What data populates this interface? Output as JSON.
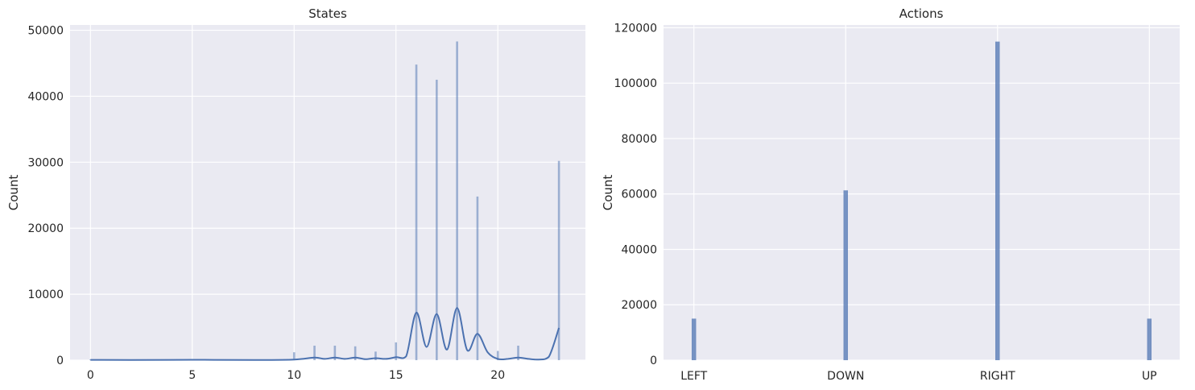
{
  "charts": [
    {
      "title": "States",
      "ylabel": "Count",
      "xlabel": "",
      "xtick_labels": [
        "0",
        "5",
        "10",
        "15",
        "20"
      ],
      "ytick_labels": [
        "0",
        "10000",
        "20000",
        "30000",
        "40000",
        "50000"
      ]
    },
    {
      "title": "Actions",
      "ylabel": "Count",
      "xlabel": "",
      "xtick_labels": [
        "LEFT",
        "DOWN",
        "RIGHT",
        "UP"
      ],
      "ytick_labels": [
        "0",
        "20000",
        "40000",
        "60000",
        "80000",
        "100000",
        "120000"
      ]
    }
  ],
  "colors": {
    "background": "#eaeaf2",
    "grid": "#ffffff",
    "bar": "#4c72b0",
    "kde": "#4c72b0"
  },
  "chart_data": [
    {
      "type": "histogram",
      "title": "States",
      "xlabel": "",
      "ylabel": "Count",
      "xlim": [
        -1,
        24.3
      ],
      "ylim": [
        0,
        50800
      ],
      "xticks": [
        0,
        5,
        10,
        15,
        20
      ],
      "yticks": [
        0,
        10000,
        20000,
        30000,
        40000,
        50000
      ],
      "grid": true,
      "bars": [
        {
          "x": 0,
          "count": 100
        },
        {
          "x": 5,
          "count": 150
        },
        {
          "x": 10,
          "count": 1200
        },
        {
          "x": 11,
          "count": 2200
        },
        {
          "x": 12,
          "count": 2200
        },
        {
          "x": 13,
          "count": 2100
        },
        {
          "x": 14,
          "count": 1300
        },
        {
          "x": 15,
          "count": 2700
        },
        {
          "x": 16,
          "count": 44800
        },
        {
          "x": 17,
          "count": 42500
        },
        {
          "x": 18,
          "count": 48300
        },
        {
          "x": 19,
          "count": 24800
        },
        {
          "x": 20,
          "count": 1400
        },
        {
          "x": 21,
          "count": 2200
        },
        {
          "x": 23,
          "count": 30200
        }
      ],
      "kde": {
        "x": [
          0,
          2,
          5,
          8,
          10,
          11,
          11.5,
          12,
          12.5,
          13,
          13.5,
          14,
          14.5,
          15,
          15.5,
          16,
          16.5,
          17,
          17.5,
          18,
          18.5,
          19,
          19.5,
          20,
          20.5,
          21,
          21.5,
          22,
          22.5,
          23
        ],
        "y": [
          50,
          20,
          60,
          30,
          100,
          400,
          200,
          400,
          200,
          400,
          150,
          300,
          200,
          450,
          600,
          7200,
          2000,
          7000,
          1600,
          7900,
          1500,
          4000,
          1200,
          200,
          200,
          400,
          200,
          100,
          500,
          4900
        ]
      }
    },
    {
      "type": "histogram",
      "title": "Actions",
      "xlabel": "",
      "ylabel": "Count",
      "categories": [
        "LEFT",
        "DOWN",
        "RIGHT",
        "UP"
      ],
      "values": [
        15000,
        61300,
        115000,
        15000
      ],
      "ylim": [
        0,
        121000
      ],
      "yticks": [
        0,
        20000,
        40000,
        60000,
        80000,
        100000,
        120000
      ],
      "grid": true
    }
  ]
}
